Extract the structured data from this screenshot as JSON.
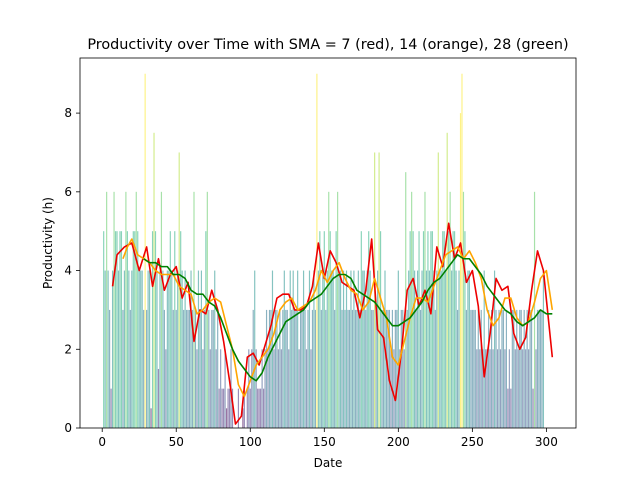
{
  "chart_data": {
    "type": "bar",
    "title": "Productivity over Time with SMA = 7 (red), 14 (orange), 28 (green)",
    "xlabel": "Date",
    "ylabel": "Productivity (h)",
    "xlim": [
      -15,
      320
    ],
    "ylim": [
      0,
      9.4
    ],
    "xticks": [
      0,
      50,
      100,
      150,
      200,
      250,
      300
    ],
    "yticks": [
      0,
      2,
      4,
      6,
      8
    ],
    "grid": false,
    "legend": "none",
    "bar_colors": {
      "0": "#440154",
      "1": "#472d7b",
      "2": "#3b528b",
      "3": "#2c728e",
      "4": "#21918c",
      "5": "#28ae80",
      "6": "#5ec962",
      "7": "#addc30",
      "8": "#fde725",
      "9": "#fde725"
    },
    "bars": {
      "x_start": 1,
      "values": [
        5,
        4,
        6,
        4,
        3,
        1,
        4,
        6,
        5,
        5,
        4,
        5,
        5,
        3,
        4,
        6,
        5,
        4,
        3,
        4,
        5,
        5,
        6,
        5,
        4,
        4,
        4,
        3,
        9,
        3,
        4,
        4,
        0.5,
        5,
        7.5,
        5,
        4,
        1.5,
        4,
        6,
        4,
        3,
        2,
        4,
        4,
        5,
        4,
        3,
        5,
        3,
        4,
        7,
        5,
        4,
        3,
        4,
        3,
        3,
        3,
        4,
        3,
        6,
        3,
        2,
        4,
        3,
        4,
        2,
        3,
        5,
        6,
        3,
        2,
        3,
        3,
        4,
        2,
        3,
        1,
        2,
        1,
        1,
        2,
        0.5,
        1,
        1,
        2,
        1,
        0,
        0,
        0,
        1,
        0,
        0,
        0.5,
        1,
        0,
        1,
        2,
        1,
        2,
        3,
        4,
        2,
        1,
        1,
        1,
        2,
        1,
        2,
        3,
        2,
        3,
        3,
        4,
        2,
        3,
        3,
        2,
        3,
        2,
        3,
        4,
        3,
        3,
        2,
        4,
        3,
        4,
        3,
        3,
        4,
        2,
        3,
        3,
        4,
        3,
        2,
        3,
        4,
        2,
        3,
        4,
        3,
        9,
        4,
        5,
        3,
        4,
        5,
        3,
        4,
        6,
        5,
        4,
        4,
        3,
        5,
        6,
        4,
        4,
        3,
        4,
        3,
        4,
        3,
        3,
        4,
        3,
        4,
        3,
        3,
        4,
        3,
        5,
        4,
        4,
        3,
        4,
        5,
        4,
        3,
        3,
        7,
        3,
        4,
        7,
        5,
        3,
        3,
        4,
        3,
        3,
        3,
        2,
        3,
        2,
        3,
        3,
        4,
        2,
        3,
        3,
        2,
        6.5,
        3,
        4,
        5,
        6,
        5,
        4,
        3,
        4,
        5,
        3,
        4,
        5,
        6,
        4,
        5,
        4,
        5,
        5,
        4,
        3,
        4,
        7,
        4,
        4,
        5,
        5,
        4,
        7.5,
        5,
        6,
        4,
        5,
        5,
        4,
        3,
        4,
        8,
        9,
        6,
        5,
        3,
        4,
        4,
        3,
        3,
        3,
        3,
        2,
        3,
        2,
        3,
        2,
        4,
        2,
        2,
        3,
        2,
        3,
        2,
        4,
        3,
        2,
        3,
        2,
        3,
        3,
        2,
        3,
        1,
        2,
        1,
        3,
        3,
        2,
        3,
        2,
        3,
        3,
        2,
        3,
        2,
        3,
        2,
        3,
        3,
        1,
        6,
        2,
        3,
        3,
        3,
        3,
        4
      ]
    },
    "series": [
      {
        "color": "#ee0000",
        "x": [
          7,
          10,
          15,
          20,
          25,
          30,
          34,
          38,
          42,
          46,
          50,
          54,
          58,
          62,
          66,
          70,
          74,
          78,
          82,
          86,
          90,
          94,
          98,
          102,
          106,
          110,
          114,
          118,
          122,
          126,
          130,
          134,
          138,
          142,
          146,
          150,
          154,
          158,
          162,
          166,
          170,
          174,
          178,
          182,
          186,
          190,
          194,
          198,
          202,
          206,
          210,
          214,
          218,
          222,
          226,
          230,
          234,
          238,
          242,
          246,
          250,
          254,
          258,
          262,
          266,
          270,
          274,
          278,
          282,
          286,
          290,
          294,
          298,
          304
        ],
        "y": [
          3.6,
          4.4,
          4.6,
          4.7,
          4.0,
          4.6,
          3.6,
          4.3,
          3.5,
          3.9,
          4.1,
          3.3,
          3.7,
          2.2,
          3.0,
          2.9,
          3.5,
          3.0,
          2.2,
          1.2,
          0.1,
          0.3,
          1.8,
          1.9,
          1.6,
          2.1,
          2.6,
          3.3,
          3.4,
          3.4,
          3.0,
          3.0,
          3.1,
          3.6,
          4.7,
          3.8,
          4.5,
          4.2,
          3.7,
          3.6,
          3.5,
          2.8,
          3.5,
          4.8,
          2.5,
          2.3,
          1.2,
          0.7,
          1.9,
          3.5,
          3.8,
          3.1,
          3.5,
          2.9,
          4.6,
          4.1,
          5.2,
          4.3,
          4.7,
          3.7,
          4.0,
          3.1,
          1.3,
          2.4,
          3.8,
          3.5,
          3.6,
          2.4,
          2.0,
          2.3,
          3.5,
          4.5,
          4.0,
          1.8
        ]
      },
      {
        "color": "#ffa500",
        "x": [
          14,
          17,
          20,
          24,
          28,
          32,
          36,
          40,
          44,
          48,
          52,
          56,
          60,
          64,
          68,
          72,
          76,
          80,
          84,
          88,
          92,
          96,
          100,
          104,
          108,
          112,
          116,
          120,
          124,
          128,
          132,
          136,
          140,
          144,
          148,
          152,
          156,
          160,
          164,
          168,
          172,
          176,
          180,
          184,
          188,
          192,
          196,
          200,
          204,
          208,
          212,
          216,
          220,
          224,
          228,
          232,
          236,
          240,
          244,
          248,
          252,
          256,
          260,
          264,
          268,
          272,
          276,
          280,
          284,
          288,
          292,
          296,
          300,
          304
        ],
        "y": [
          4.3,
          4.6,
          4.8,
          4.4,
          4.3,
          4.2,
          4.0,
          3.9,
          3.9,
          3.9,
          3.6,
          3.5,
          3.4,
          2.9,
          3.0,
          3.2,
          3.3,
          3.2,
          2.6,
          2.0,
          1.1,
          0.8,
          1.2,
          1.6,
          1.8,
          2.0,
          2.4,
          3.0,
          3.2,
          3.3,
          3.0,
          3.1,
          3.2,
          3.5,
          4.0,
          3.7,
          4.0,
          4.2,
          3.8,
          3.5,
          3.4,
          3.0,
          3.2,
          3.8,
          3.3,
          2.8,
          1.8,
          1.6,
          2.2,
          2.8,
          3.3,
          3.3,
          3.2,
          3.6,
          4.0,
          4.4,
          4.5,
          4.6,
          4.3,
          4.5,
          4.2,
          3.8,
          3.0,
          2.6,
          2.8,
          3.3,
          3.3,
          2.8,
          2.6,
          2.7,
          3.2,
          3.8,
          4.0,
          3.0
        ]
      },
      {
        "color": "#008000",
        "x": [
          28,
          32,
          36,
          40,
          44,
          48,
          52,
          56,
          60,
          64,
          68,
          72,
          76,
          80,
          84,
          88,
          92,
          96,
          100,
          104,
          108,
          112,
          116,
          120,
          124,
          128,
          132,
          136,
          140,
          144,
          148,
          152,
          156,
          160,
          164,
          168,
          172,
          176,
          180,
          184,
          188,
          192,
          196,
          200,
          204,
          208,
          212,
          216,
          220,
          224,
          228,
          232,
          236,
          240,
          244,
          248,
          252,
          256,
          260,
          264,
          268,
          272,
          276,
          280,
          284,
          288,
          292,
          296,
          300,
          304
        ],
        "y": [
          4.3,
          4.2,
          4.2,
          4.1,
          4.1,
          3.9,
          3.9,
          3.8,
          3.5,
          3.4,
          3.4,
          3.2,
          3.1,
          2.8,
          2.4,
          2.0,
          1.7,
          1.5,
          1.3,
          1.2,
          1.4,
          1.8,
          2.1,
          2.4,
          2.7,
          2.8,
          2.9,
          3.0,
          3.2,
          3.3,
          3.4,
          3.6,
          3.8,
          3.9,
          3.9,
          3.8,
          3.5,
          3.4,
          3.3,
          3.2,
          3.0,
          2.8,
          2.6,
          2.6,
          2.7,
          2.8,
          3.0,
          3.2,
          3.5,
          3.7,
          3.8,
          4.0,
          4.2,
          4.4,
          4.3,
          4.3,
          4.1,
          3.9,
          3.6,
          3.4,
          3.2,
          3.0,
          2.9,
          2.7,
          2.6,
          2.7,
          2.8,
          3.0,
          2.9,
          2.9
        ]
      }
    ]
  }
}
